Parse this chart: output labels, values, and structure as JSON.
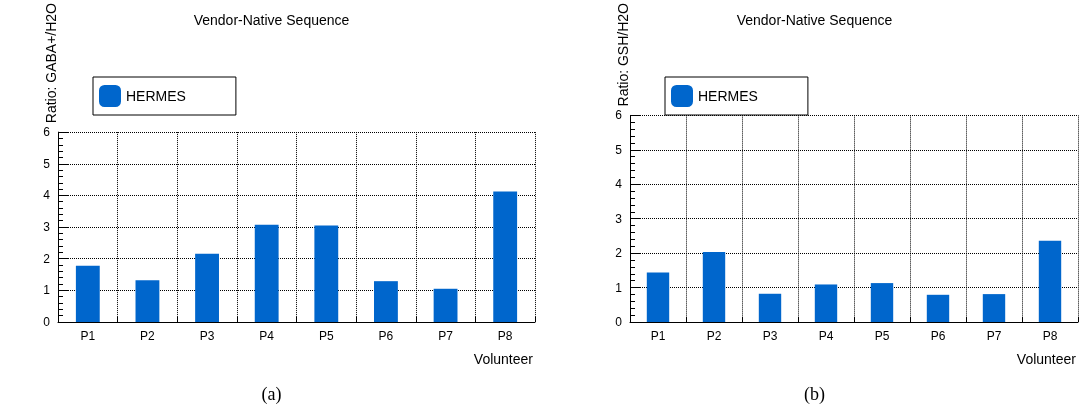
{
  "chart_data": [
    {
      "type": "bar",
      "title": "Vendor-Native Sequence",
      "xlabel": "Volunteer",
      "ylabel": "Ratio: GABA+/H2O",
      "annotations": [
        "(a)"
      ],
      "categories": [
        "P1",
        "P2",
        "P3",
        "P4",
        "P5",
        "P6",
        "P7",
        "P8"
      ],
      "series": [
        {
          "name": "HERMES",
          "color": "#0066cc",
          "values": [
            1.78,
            1.32,
            2.16,
            3.07,
            3.05,
            1.29,
            1.05,
            4.12
          ]
        }
      ],
      "ylim": [
        0,
        6
      ],
      "yticks": [
        0,
        1,
        2,
        3,
        4,
        5,
        6
      ],
      "grid": true,
      "legend": "top left"
    },
    {
      "type": "bar",
      "title": "Vendor-Native Sequence",
      "xlabel": "Volunteer",
      "ylabel": "Ratio: GSH/H2O",
      "annotations": [
        "(b)"
      ],
      "categories": [
        "P1",
        "P2",
        "P3",
        "P4",
        "P5",
        "P6",
        "P7",
        "P8"
      ],
      "series": [
        {
          "name": "HERMES",
          "color": "#0066cc",
          "values": [
            1.44,
            2.03,
            0.82,
            1.09,
            1.13,
            0.79,
            0.81,
            2.36
          ]
        }
      ],
      "ylim": [
        0,
        6
      ],
      "yticks": [
        0,
        1,
        2,
        3,
        4,
        5,
        6
      ],
      "grid": true,
      "legend": "top left"
    }
  ]
}
